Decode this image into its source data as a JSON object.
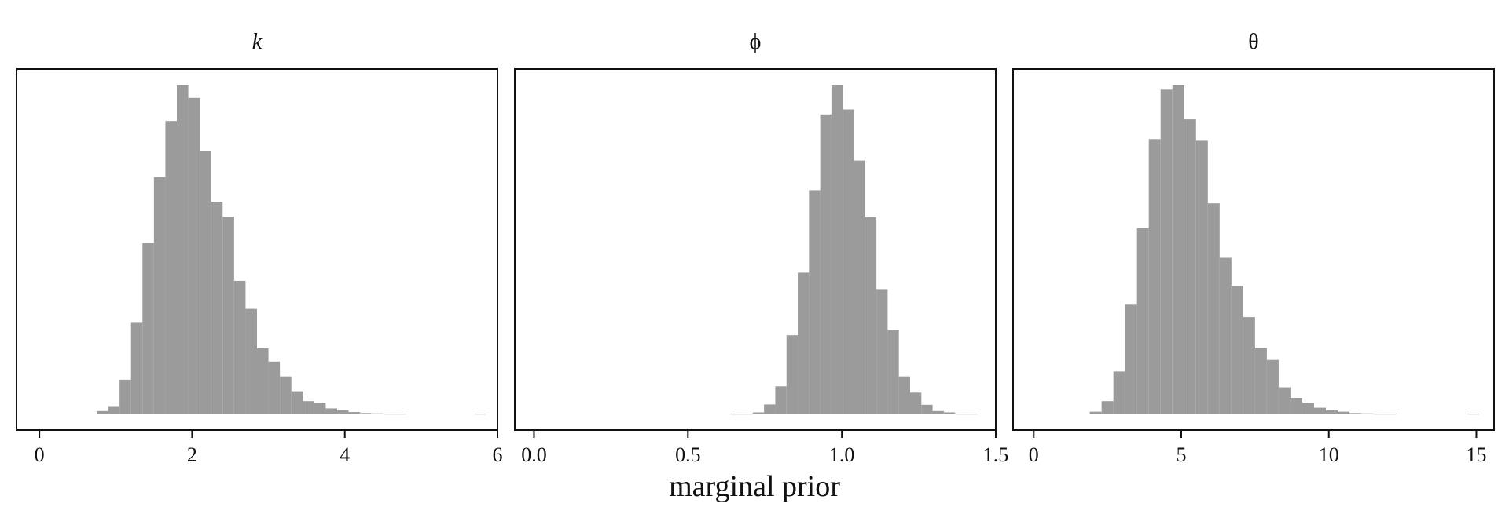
{
  "figure": {
    "xlabel": "marginal prior",
    "bar_color": "#9b9b9b",
    "frame_color": "#111111"
  },
  "chart_data": [
    {
      "type": "bar",
      "title": "k",
      "title_style": "italic",
      "xlim": [
        -0.3,
        6.0
      ],
      "ylim": [
        0,
        1.05
      ],
      "xticks": [
        0,
        2,
        4,
        6
      ],
      "xtick_labels": [
        "0",
        "2",
        "4",
        "6"
      ],
      "bin_width": 0.15,
      "bins": [
        [
          0.75,
          0.01
        ],
        [
          0.9,
          0.025
        ],
        [
          1.05,
          0.105
        ],
        [
          1.2,
          0.28
        ],
        [
          1.35,
          0.52
        ],
        [
          1.5,
          0.72
        ],
        [
          1.65,
          0.89
        ],
        [
          1.8,
          1.0
        ],
        [
          1.95,
          0.96
        ],
        [
          2.1,
          0.8
        ],
        [
          2.25,
          0.645
        ],
        [
          2.4,
          0.6
        ],
        [
          2.55,
          0.405
        ],
        [
          2.7,
          0.32
        ],
        [
          2.85,
          0.2
        ],
        [
          3.0,
          0.16
        ],
        [
          3.15,
          0.115
        ],
        [
          3.3,
          0.07
        ],
        [
          3.45,
          0.04
        ],
        [
          3.6,
          0.035
        ],
        [
          3.75,
          0.018
        ],
        [
          3.9,
          0.012
        ],
        [
          4.05,
          0.007
        ],
        [
          4.2,
          0.004
        ],
        [
          4.35,
          0.003
        ],
        [
          4.5,
          0.002
        ],
        [
          4.65,
          0.002
        ],
        [
          5.7,
          0.002
        ]
      ]
    },
    {
      "type": "bar",
      "title": "ϕ",
      "title_style": "normal",
      "xlim": [
        -0.0625,
        1.5
      ],
      "ylim": [
        0,
        1.05
      ],
      "xticks": [
        0.0,
        0.5,
        1.0,
        1.5
      ],
      "xtick_labels": [
        "0.0",
        "0.5",
        "1.0",
        "1.5"
      ],
      "bin_width": 0.0365,
      "bins": [
        [
          0.6377,
          0.002
        ],
        [
          0.6742,
          0.002
        ],
        [
          0.7107,
          0.006
        ],
        [
          0.7472,
          0.03
        ],
        [
          0.7837,
          0.085
        ],
        [
          0.8202,
          0.24
        ],
        [
          0.8567,
          0.43
        ],
        [
          0.8932,
          0.68
        ],
        [
          0.9297,
          0.91
        ],
        [
          0.9662,
          1.0
        ],
        [
          1.0027,
          0.925
        ],
        [
          1.0392,
          0.77
        ],
        [
          1.0757,
          0.6
        ],
        [
          1.1122,
          0.38
        ],
        [
          1.1487,
          0.255
        ],
        [
          1.1852,
          0.115
        ],
        [
          1.2217,
          0.066
        ],
        [
          1.2582,
          0.029
        ],
        [
          1.2947,
          0.01
        ],
        [
          1.3312,
          0.006
        ],
        [
          1.3677,
          0.002
        ],
        [
          1.4042,
          0.002
        ]
      ]
    },
    {
      "type": "bar",
      "title": "θ",
      "title_style": "normal",
      "xlim": [
        -0.7,
        15.6
      ],
      "ylim": [
        0,
        1.05
      ],
      "xticks": [
        0,
        5,
        10,
        15
      ],
      "xtick_labels": [
        "0",
        "5",
        "10",
        "15"
      ],
      "bin_width": 0.4,
      "bins": [
        [
          1.9,
          0.008
        ],
        [
          2.3,
          0.04
        ],
        [
          2.7,
          0.13
        ],
        [
          3.1,
          0.335
        ],
        [
          3.5,
          0.565
        ],
        [
          3.9,
          0.835
        ],
        [
          4.3,
          0.985
        ],
        [
          4.7,
          1.0
        ],
        [
          5.1,
          0.895
        ],
        [
          5.5,
          0.83
        ],
        [
          5.9,
          0.64
        ],
        [
          6.3,
          0.475
        ],
        [
          6.7,
          0.39
        ],
        [
          7.1,
          0.295
        ],
        [
          7.5,
          0.2
        ],
        [
          7.9,
          0.165
        ],
        [
          8.3,
          0.082
        ],
        [
          8.7,
          0.05
        ],
        [
          9.1,
          0.035
        ],
        [
          9.5,
          0.02
        ],
        [
          9.9,
          0.012
        ],
        [
          10.3,
          0.008
        ],
        [
          10.7,
          0.004
        ],
        [
          11.1,
          0.003
        ],
        [
          11.5,
          0.002
        ],
        [
          11.9,
          0.002
        ],
        [
          14.7,
          0.002
        ]
      ]
    }
  ]
}
